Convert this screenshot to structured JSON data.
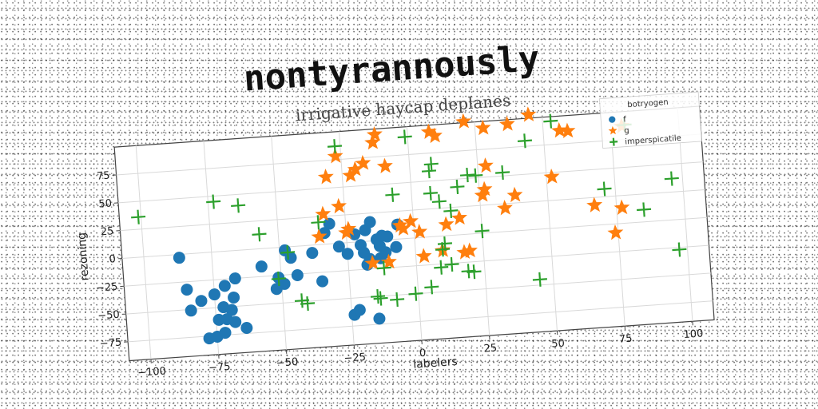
{
  "chart_data": {
    "type": "scatter",
    "title": "nontyrannously",
    "subtitle": "irrigative haycap deplanes",
    "xlabel": "labelers",
    "ylabel": "rezoning",
    "xlim": [
      -108,
      108
    ],
    "ylim": [
      -92,
      100
    ],
    "xticks": [
      -100,
      -75,
      -50,
      -25,
      0,
      25,
      50,
      75,
      100
    ],
    "yticks": [
      -75,
      -50,
      -25,
      0,
      25,
      50,
      75
    ],
    "grid": true,
    "legend": {
      "title": "botryogen",
      "placement": "top-right"
    },
    "series": [
      {
        "name": "f",
        "marker": "circle",
        "color": "#1f77b4",
        "points": [
          [
            -87,
            -3
          ],
          [
            -85,
            -32
          ],
          [
            -84,
            -51
          ],
          [
            -80,
            -43
          ],
          [
            -78,
            -77
          ],
          [
            -75,
            -76
          ],
          [
            -75,
            -38
          ],
          [
            -74,
            -61
          ],
          [
            -72,
            -50
          ],
          [
            -72,
            -73
          ],
          [
            -71,
            -61
          ],
          [
            -71,
            -31
          ],
          [
            -69,
            -53
          ],
          [
            -68,
            -64
          ],
          [
            -68,
            -42
          ],
          [
            -67,
            -25
          ],
          [
            -64,
            -70
          ],
          [
            -57,
            -16
          ],
          [
            -52,
            -37
          ],
          [
            -51,
            -27
          ],
          [
            -49,
            -33
          ],
          [
            -48,
            -3
          ],
          [
            -46,
            -10
          ],
          [
            -44,
            -26
          ],
          [
            -38,
            -7
          ],
          [
            -35,
            -33
          ],
          [
            -33,
            10
          ],
          [
            -31,
            18
          ],
          [
            -28,
            -3
          ],
          [
            -25,
            -10
          ],
          [
            -24,
            -65
          ],
          [
            -22,
            -61
          ],
          [
            -22,
            7
          ],
          [
            -20,
            -3
          ],
          [
            -19,
            -10
          ],
          [
            -18,
            -21
          ],
          [
            -18,
            10
          ],
          [
            -17,
            -16
          ],
          [
            -16,
            17
          ],
          [
            -15,
            -70
          ],
          [
            -14,
            1
          ],
          [
            -13,
            -5
          ],
          [
            -13,
            -16
          ],
          [
            -12,
            4
          ],
          [
            -11,
            -11
          ],
          [
            -10,
            3
          ],
          [
            -7,
            -7
          ],
          [
            -6,
            13
          ]
        ]
      },
      {
        "name": "g",
        "marker": "star",
        "color": "#ff7f0e",
        "points": [
          [
            -35,
            7
          ],
          [
            -33,
            27
          ],
          [
            -31,
            60
          ],
          [
            -27,
            33
          ],
          [
            -27,
            78
          ],
          [
            -25,
            9
          ],
          [
            -24,
            12
          ],
          [
            -22,
            60
          ],
          [
            -20,
            65
          ],
          [
            -17,
            70
          ],
          [
            -16,
            -20
          ],
          [
            -13,
            88
          ],
          [
            -12,
            95
          ],
          [
            -10,
            -20
          ],
          [
            -9,
            66
          ],
          [
            -5,
            12
          ],
          [
            -4,
            9
          ],
          [
            -1,
            15
          ],
          [
            2,
            5
          ],
          [
            3,
            -17
          ],
          [
            8,
            94
          ],
          [
            10,
            -13
          ],
          [
            10,
            90
          ],
          [
            12,
            10
          ],
          [
            17,
            15
          ],
          [
            18,
            -16
          ],
          [
            20,
            -15
          ],
          [
            21,
            101
          ],
          [
            26,
            34
          ],
          [
            27,
            39
          ],
          [
            28,
            94
          ],
          [
            28,
            60
          ],
          [
            34,
            21
          ],
          [
            37,
            96
          ],
          [
            38,
            32
          ],
          [
            45,
            103
          ],
          [
            52,
            46
          ],
          [
            56,
            87
          ],
          [
            59,
            86
          ],
          [
            67,
            18
          ],
          [
            74,
            -8
          ],
          [
            77,
            14
          ],
          [
            79,
            87
          ]
        ]
      },
      {
        "name": "imperspicatile",
        "marker": "plus",
        "color": "#2ca02c",
        "points": [
          [
            -101,
            36
          ],
          [
            -73,
            45
          ],
          [
            -64,
            40
          ],
          [
            -57,
            13
          ],
          [
            -51,
            -28
          ],
          [
            -47,
            -5
          ],
          [
            -43,
            -49
          ],
          [
            -41,
            -52
          ],
          [
            -35,
            20
          ],
          [
            -27,
            87
          ],
          [
            -15,
            -50
          ],
          [
            -14,
            -52
          ],
          [
            -12,
            -25
          ],
          [
            -8,
            -54
          ],
          [
            -7,
            40
          ],
          [
            -1,
            -50
          ],
          [
            -1,
            91
          ],
          [
            5,
            -45
          ],
          [
            7,
            59
          ],
          [
            7,
            39
          ],
          [
            8,
            65
          ],
          [
            9,
            -28
          ],
          [
            10,
            -12
          ],
          [
            10,
            31
          ],
          [
            11,
            -7
          ],
          [
            13,
            -26
          ],
          [
            14,
            22
          ],
          [
            17,
            43
          ],
          [
            19,
            -33
          ],
          [
            21,
            -34
          ],
          [
            21,
            53
          ],
          [
            24,
            52
          ],
          [
            25,
            2
          ],
          [
            34,
            53
          ],
          [
            43,
            80
          ],
          [
            45,
            -45
          ],
          [
            53,
            96
          ],
          [
            71,
            32
          ],
          [
            80,
            88
          ],
          [
            85,
            11
          ],
          [
            96,
            37
          ],
          [
            97,
            -27
          ]
        ]
      }
    ]
  }
}
